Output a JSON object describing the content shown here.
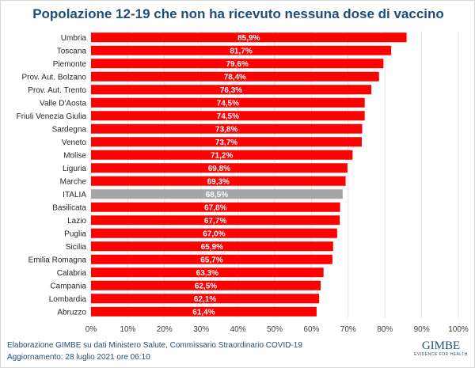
{
  "chart_data": {
    "type": "bar",
    "orientation": "horizontal",
    "title": "Popolazione 12-19 che non ha ricevuto nessuna dose di vaccino",
    "categories": [
      "Umbria",
      "Toscana",
      "Piemonte",
      "Prov. Aut. Bolzano",
      "Prov. Aut. Trento",
      "Valle D'Aosta",
      "Friuli Venezia Giulia",
      "Sardegna",
      "Veneto",
      "Molise",
      "Liguria",
      "Marche",
      "ITALIA",
      "Basilicata",
      "Lazio",
      "Puglia",
      "Sicilia",
      "Emilia Romagna",
      "Calabria",
      "Campania",
      "Lombardia",
      "Abruzzo"
    ],
    "values": [
      85.9,
      81.7,
      79.6,
      78.4,
      76.3,
      74.5,
      74.5,
      73.8,
      73.7,
      71.2,
      69.8,
      69.3,
      68.5,
      67.8,
      67.7,
      67.0,
      65.9,
      65.7,
      63.3,
      62.5,
      62.1,
      61.4
    ],
    "data_labels": [
      "85,9%",
      "81,7%",
      "79,6%",
      "78,4%",
      "76,3%",
      "74,5%",
      "74,5%",
      "73,8%",
      "73,7%",
      "71,2%",
      "69,8%",
      "69,3%",
      "68,5%",
      "67,8%",
      "67,7%",
      "67,0%",
      "65,9%",
      "65,7%",
      "63,3%",
      "62,5%",
      "62,1%",
      "61,4%"
    ],
    "xlim": [
      0,
      100
    ],
    "x_ticks": [
      "0%",
      "10%",
      "20%",
      "30%",
      "40%",
      "50%",
      "60%",
      "70%",
      "80%",
      "90%",
      "100%"
    ],
    "grid": true,
    "colors": {
      "default": "#ff0000",
      "highlight": "#a6a6a6"
    },
    "highlight_category": "ITALIA"
  },
  "footer": {
    "source": "Elaborazione GIMBE su dati Ministero Salute, Commissario Straordinario COVID-19",
    "updated": "Aggiornamento: 28 luglio 2021 ore 06:10"
  },
  "logo": {
    "name": "GIMBE",
    "tagline": "EVIDENCE FOR HEALTH"
  }
}
